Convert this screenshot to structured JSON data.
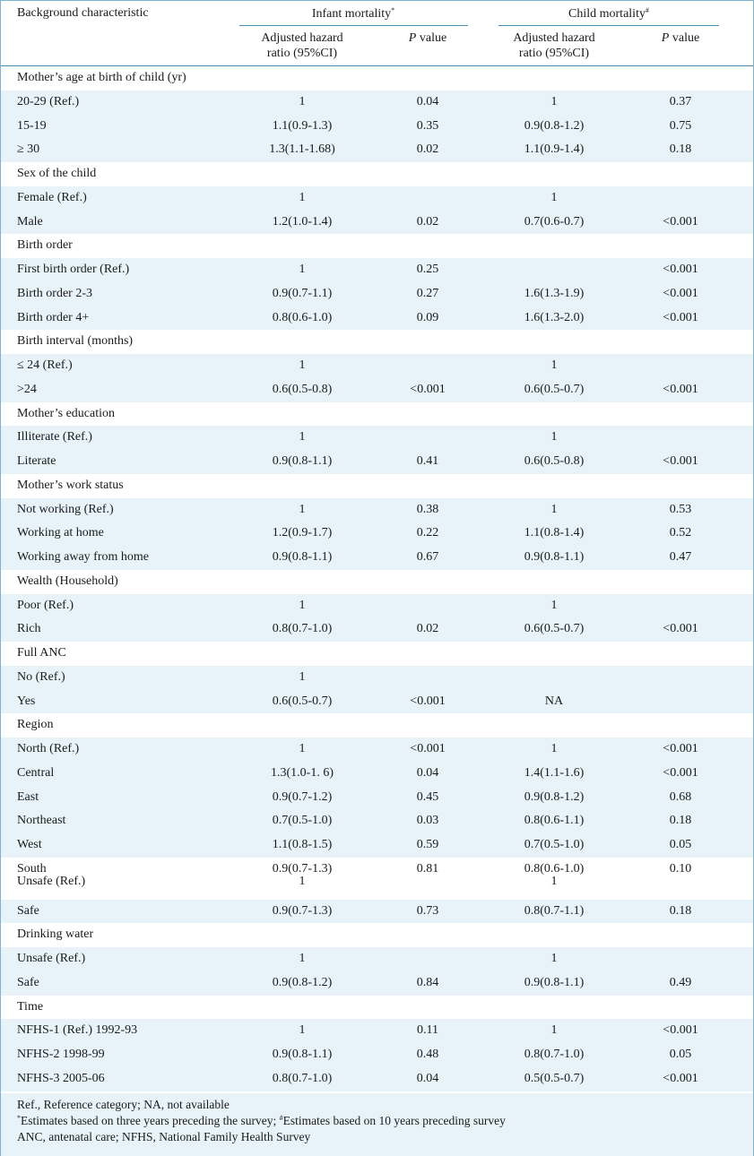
{
  "header": {
    "characteristic": "Background characteristic",
    "infant_title": "Infant mortality",
    "infant_mark": "*",
    "child_title": "Child mortality",
    "child_mark": "#",
    "ahr_line1": "Adjusted hazard",
    "ahr_line2": "ratio (95%CI)",
    "p_italic": "P",
    "p_rest": " value"
  },
  "rows": [
    {
      "label": "Mother’s age at birth of child (yr)",
      "group": true
    },
    {
      "label": "20-29 (Ref.)",
      "ihr": "1",
      "ip": "0.04",
      "chr": "1",
      "cp": "0.37"
    },
    {
      "label": "15-19",
      "ihr": "1.1(0.9-1.3)",
      "ip": "0.35",
      "chr": "0.9(0.8-1.2)",
      "cp": "0.75"
    },
    {
      "label": "≥ 30",
      "ihr": "1.3(1.1-1.68)",
      "ip": "0.02",
      "chr": "1.1(0.9-1.4)",
      "cp": "0.18"
    },
    {
      "label": "Sex of the child",
      "group": true
    },
    {
      "label": "Female (Ref.)",
      "ihr": "1",
      "ip": "",
      "chr": "1",
      "cp": ""
    },
    {
      "label": "Male",
      "ihr": "1.2(1.0-1.4)",
      "ip": "0.02",
      "chr": "0.7(0.6-0.7)",
      "cp": "<0.001"
    },
    {
      "label": "Birth order",
      "group": true
    },
    {
      "label": "First birth order (Ref.)",
      "ihr": "1",
      "ip": "0.25",
      "chr": "",
      "cp": "<0.001"
    },
    {
      "label": "Birth order 2-3",
      "ihr": "0.9(0.7-1.1)",
      "ip": "0.27",
      "chr": "1.6(1.3-1.9)",
      "cp": "<0.001"
    },
    {
      "label": "Birth order 4+",
      "ihr": "0.8(0.6-1.0)",
      "ip": "0.09",
      "chr": "1.6(1.3-2.0)",
      "cp": "<0.001"
    },
    {
      "label": "Birth interval (months)",
      "group": true
    },
    {
      "label": "≤ 24 (Ref.)",
      "ihr": "1",
      "ip": "",
      "chr": "1",
      "cp": ""
    },
    {
      "label": ">24",
      "ihr": "0.6(0.5-0.8)",
      "ip": "<0.001",
      "chr": "0.6(0.5-0.7)",
      "cp": "<0.001"
    },
    {
      "label": "Mother’s education",
      "group": true
    },
    {
      "label": "Illiterate (Ref.)",
      "ihr": "1",
      "ip": "",
      "chr": "1",
      "cp": ""
    },
    {
      "label": "Literate",
      "ihr": "0.9(0.8-1.1)",
      "ip": "0.41",
      "chr": "0.6(0.5-0.8)",
      "cp": "<0.001"
    },
    {
      "label": "Mother’s work status",
      "group": true
    },
    {
      "label": "Not working (Ref.)",
      "ihr": "1",
      "ip": "0.38",
      "chr": "1",
      "cp": "0.53"
    },
    {
      "label": "Working at home",
      "ihr": "1.2(0.9-1.7)",
      "ip": "0.22",
      "chr": "1.1(0.8-1.4)",
      "cp": "0.52"
    },
    {
      "label": "Working away from home",
      "ihr": "0.9(0.8-1.1)",
      "ip": "0.67",
      "chr": "0.9(0.8-1.1)",
      "cp": "0.47"
    },
    {
      "label": "Wealth (Household)",
      "group": true
    },
    {
      "label": "Poor (Ref.)",
      "ihr": "1",
      "ip": "",
      "chr": "1",
      "cp": ""
    },
    {
      "label": "Rich",
      "ihr": "0.8(0.7-1.0)",
      "ip": "0.02",
      "chr": "0.6(0.5-0.7)",
      "cp": "<0.001"
    },
    {
      "label": "Full ANC",
      "group": true
    },
    {
      "label": "No (Ref.)",
      "ihr": "1",
      "ip": "",
      "chr": "",
      "cp": ""
    },
    {
      "label": "Yes",
      "ihr": "0.6(0.5-0.7)",
      "ip": "<0.001",
      "chr": "NA",
      "cp": ""
    },
    {
      "label": "Region",
      "group": true
    },
    {
      "label": "North (Ref.)",
      "ihr": "1",
      "ip": "<0.001",
      "chr": "1",
      "cp": "<0.001"
    },
    {
      "label": "Central",
      "ihr": "1.3(1.0-1. 6)",
      "ip": "0.04",
      "chr": "1.4(1.1-1.6)",
      "cp": "<0.001"
    },
    {
      "label": "East",
      "ihr": "0.9(0.7-1.2)",
      "ip": "0.45",
      "chr": "0.9(0.8-1.2)",
      "cp": "0.68"
    },
    {
      "label": "Northeast",
      "ihr": "0.7(0.5-1.0)",
      "ip": "0.03",
      "chr": "0.8(0.6-1.1)",
      "cp": "0.18"
    },
    {
      "label": "West",
      "ihr": "1.1(0.8-1.5)",
      "ip": "0.59",
      "chr": "0.7(0.5-1.0)",
      "cp": "0.05"
    },
    {
      "label": "South",
      "ihr": "0.9(0.7-1.3)",
      "ip": "0.81",
      "chr": "0.8(0.6-1.0)",
      "cp": "0.10",
      "compact": "first"
    },
    {
      "label": "Unsafe (Ref.)",
      "ihr": "1",
      "ip": "",
      "chr": "1",
      "cp": "",
      "compact": "second"
    },
    {
      "label": "Safe",
      "ihr": "0.9(0.7-1.3)",
      "ip": "0.73",
      "chr": "0.8(0.7-1.1)",
      "cp": "0.18"
    },
    {
      "label": "Drinking water",
      "group": true
    },
    {
      "label": "Unsafe (Ref.)",
      "ihr": "1",
      "ip": "",
      "chr": "1",
      "cp": ""
    },
    {
      "label": "Safe",
      "ihr": "0.9(0.8-1.2)",
      "ip": "0.84",
      "chr": "0.9(0.8-1.1)",
      "cp": "0.49"
    },
    {
      "label": "Time",
      "group": true
    },
    {
      "label": "NFHS-1 (Ref.) 1992-93",
      "ihr": "1",
      "ip": "0.11",
      "chr": "1",
      "cp": "<0.001"
    },
    {
      "label": "NFHS-2 1998-99",
      "ihr": "0.9(0.8-1.1)",
      "ip": "0.48",
      "chr": "0.8(0.7-1.0)",
      "cp": "0.05"
    },
    {
      "label": "NFHS-3 2005-06",
      "ihr": "0.8(0.7-1.0)",
      "ip": "0.04",
      "chr": "0.5(0.5-0.7)",
      "cp": "<0.001"
    }
  ],
  "footnotes": {
    "line1": "Ref., Reference category; NA, not available",
    "line2_mark1": "*",
    "line2_a": "Estimates based on three years preceding the survey; ",
    "line2_mark2": "#",
    "line2_b": "Estimates based on 10 years preceding survey",
    "line3": "ANC, antenatal care; NFHS, National Family Health Survey"
  }
}
